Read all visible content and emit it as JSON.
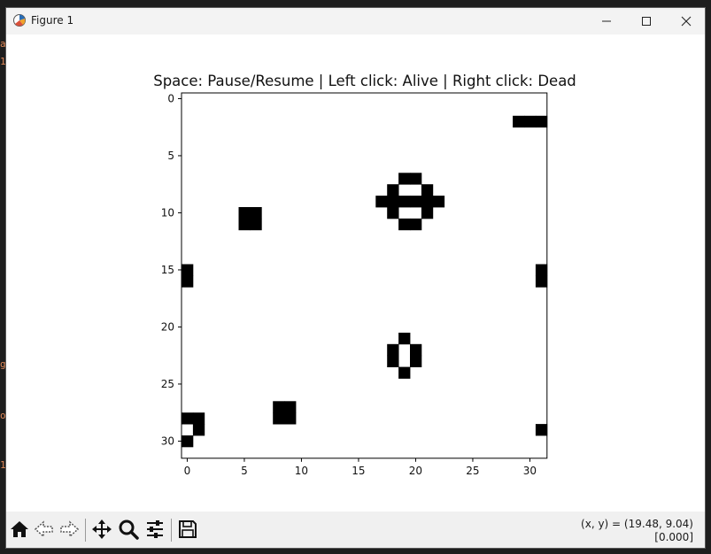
{
  "window": {
    "title": "Figure 1",
    "icons": {
      "app": "matplotlib-figure-icon",
      "minimize": "minimize-icon",
      "maximize": "maximize-icon",
      "close": "close-icon"
    }
  },
  "background_terminal_chars": [
    "a",
    "1",
    "g",
    "o",
    "1"
  ],
  "chart_data": {
    "type": "heatmap",
    "title": "Space: Pause/Resume | Left click: Alive | Right click: Dead",
    "grid_size": [
      32,
      32
    ],
    "xticks": [
      0,
      5,
      10,
      15,
      20,
      25,
      30
    ],
    "yticks": [
      0,
      5,
      10,
      15,
      20,
      25,
      30
    ],
    "xlim": [
      -0.5,
      31.5
    ],
    "ylim": [
      31.5,
      -0.5
    ],
    "colors": {
      "alive": "#000000",
      "dead": "#ffffff"
    },
    "cmap": "binary",
    "alive_cells": [
      [
        29,
        2
      ],
      [
        30,
        2
      ],
      [
        31,
        2
      ],
      [
        19,
        7
      ],
      [
        20,
        7
      ],
      [
        18,
        8
      ],
      [
        21,
        8
      ],
      [
        17,
        9
      ],
      [
        18,
        9
      ],
      [
        19,
        9
      ],
      [
        20,
        9
      ],
      [
        21,
        9
      ],
      [
        22,
        9
      ],
      [
        18,
        10
      ],
      [
        21,
        10
      ],
      [
        19,
        11
      ],
      [
        20,
        11
      ],
      [
        5,
        10
      ],
      [
        6,
        10
      ],
      [
        5,
        11
      ],
      [
        6,
        11
      ],
      [
        0,
        15
      ],
      [
        0,
        16
      ],
      [
        31,
        15
      ],
      [
        31,
        16
      ],
      [
        19,
        21
      ],
      [
        18,
        22
      ],
      [
        20,
        22
      ],
      [
        18,
        23
      ],
      [
        20,
        23
      ],
      [
        19,
        24
      ],
      [
        8,
        27
      ],
      [
        9,
        27
      ],
      [
        8,
        28
      ],
      [
        9,
        28
      ],
      [
        0,
        28
      ],
      [
        1,
        28
      ],
      [
        1,
        29
      ],
      [
        31,
        29
      ],
      [
        0,
        30
      ]
    ]
  },
  "toolbar": {
    "buttons": [
      {
        "name": "home-button",
        "icon": "home-icon"
      },
      {
        "name": "back-button",
        "icon": "back-arrow-icon"
      },
      {
        "name": "forward-button",
        "icon": "forward-arrow-icon"
      },
      {
        "name": "pan-button",
        "icon": "pan-icon"
      },
      {
        "name": "zoom-button",
        "icon": "zoom-icon"
      },
      {
        "name": "configure-subplots-button",
        "icon": "sliders-icon"
      },
      {
        "name": "save-button",
        "icon": "save-icon"
      }
    ],
    "coords_line1": "(x, y) = (19.48, 9.04)",
    "coords_line2": "[0.000]"
  }
}
